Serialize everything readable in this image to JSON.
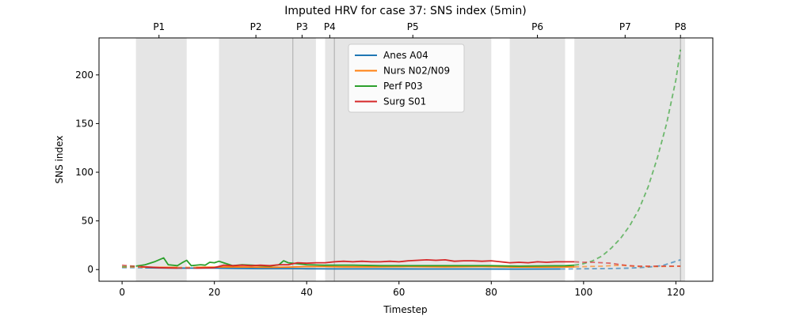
{
  "chart_data": {
    "type": "line",
    "title": "Imputed HRV for case 37: SNS index (5min)",
    "xlabel": "Timestep",
    "ylabel": "SNS index",
    "xlim": [
      -5,
      128
    ],
    "ylim": [
      -12,
      238
    ],
    "x_ticks": [
      0,
      20,
      40,
      60,
      80,
      100,
      120
    ],
    "y_ticks": [
      0,
      50,
      100,
      150,
      200
    ],
    "phase_ticks": [
      {
        "label": "P1",
        "x": 8
      },
      {
        "label": "P2",
        "x": 29
      },
      {
        "label": "P3",
        "x": 39
      },
      {
        "label": "P4",
        "x": 45
      },
      {
        "label": "P5",
        "x": 63
      },
      {
        "label": "P6",
        "x": 90
      },
      {
        "label": "P7",
        "x": 109
      },
      {
        "label": "P8",
        "x": 121
      }
    ],
    "shaded_spans": [
      [
        3,
        14
      ],
      [
        21,
        37
      ],
      [
        37,
        42
      ],
      [
        44,
        46
      ],
      [
        46,
        80
      ],
      [
        84,
        96
      ],
      [
        98,
        121
      ],
      [
        121,
        122
      ]
    ],
    "vertical_lines": [
      37,
      46,
      121
    ],
    "legend": {
      "position": "top-center",
      "entries": [
        "Anes A04",
        "Nurs N02/N09",
        "Perf P03",
        "Surg S01"
      ]
    },
    "series": [
      {
        "name": "Anes A04",
        "color": "#1f77b4",
        "values": [
          [
            0,
            2
          ],
          [
            5,
            1.8
          ],
          [
            10,
            1.5
          ],
          [
            14,
            1.5
          ],
          [
            20,
            1.5
          ],
          [
            25,
            1.2
          ],
          [
            30,
            1.0
          ],
          [
            36,
            1.0
          ],
          [
            40,
            0.8
          ],
          [
            46,
            0.7
          ],
          [
            55,
            0.7
          ],
          [
            65,
            0.6
          ],
          [
            75,
            0.6
          ],
          [
            85,
            0.5
          ],
          [
            95,
            0.6
          ],
          [
            105,
            1
          ],
          [
            110,
            1.5
          ],
          [
            114,
            2.5
          ],
          [
            117,
            4
          ],
          [
            119,
            7
          ],
          [
            121,
            10
          ]
        ]
      },
      {
        "name": "Nurs N02/N09",
        "color": "#ff7f0e",
        "values": [
          [
            0,
            2.5
          ],
          [
            4,
            2.5
          ],
          [
            8,
            2.3
          ],
          [
            12,
            2.2
          ],
          [
            16,
            2.3
          ],
          [
            20,
            2.5
          ],
          [
            24,
            2.8
          ],
          [
            28,
            2.5
          ],
          [
            32,
            2.3
          ],
          [
            36,
            2.5
          ],
          [
            40,
            3
          ],
          [
            44,
            3
          ],
          [
            48,
            2.8
          ],
          [
            55,
            2.8
          ],
          [
            62,
            3
          ],
          [
            70,
            2.8
          ],
          [
            78,
            3
          ],
          [
            85,
            2.5
          ],
          [
            92,
            2.5
          ],
          [
            98,
            2.8
          ],
          [
            104,
            3.5
          ],
          [
            108,
            4.5
          ],
          [
            112,
            3
          ],
          [
            116,
            3
          ],
          [
            121,
            3.5
          ]
        ]
      },
      {
        "name": "Perf P03",
        "color": "#2ca02c",
        "values": [
          [
            0,
            3
          ],
          [
            3,
            3.5
          ],
          [
            5,
            5
          ],
          [
            7,
            8
          ],
          [
            9,
            12
          ],
          [
            10,
            5
          ],
          [
            12,
            4
          ],
          [
            13,
            7
          ],
          [
            14,
            9.5
          ],
          [
            15,
            4
          ],
          [
            17,
            5
          ],
          [
            18,
            4.5
          ],
          [
            19,
            7.5
          ],
          [
            20,
            7
          ],
          [
            21,
            8.5
          ],
          [
            22,
            7
          ],
          [
            24,
            4
          ],
          [
            26,
            5
          ],
          [
            28,
            4.5
          ],
          [
            30,
            4
          ],
          [
            32,
            3.5
          ],
          [
            34,
            5
          ],
          [
            35,
            9
          ],
          [
            36,
            7
          ],
          [
            38,
            6
          ],
          [
            40,
            5
          ],
          [
            44,
            4.5
          ],
          [
            50,
            4.5
          ],
          [
            56,
            4
          ],
          [
            62,
            4
          ],
          [
            68,
            4
          ],
          [
            74,
            4
          ],
          [
            80,
            4
          ],
          [
            86,
            3.5
          ],
          [
            92,
            3.8
          ],
          [
            96,
            4
          ],
          [
            98,
            4.5
          ],
          [
            100,
            6
          ],
          [
            102,
            9
          ],
          [
            104,
            14
          ],
          [
            106,
            22
          ],
          [
            108,
            32
          ],
          [
            110,
            45
          ],
          [
            112,
            62
          ],
          [
            114,
            85
          ],
          [
            116,
            115
          ],
          [
            118,
            150
          ],
          [
            120,
            195
          ],
          [
            121,
            226
          ]
        ]
      },
      {
        "name": "Surg S01",
        "color": "#d62728",
        "values": [
          [
            0,
            4.5
          ],
          [
            4,
            3
          ],
          [
            8,
            2
          ],
          [
            12,
            1.5
          ],
          [
            16,
            1.5
          ],
          [
            20,
            2
          ],
          [
            22,
            4.5
          ],
          [
            24,
            4
          ],
          [
            26,
            4.5
          ],
          [
            28,
            4
          ],
          [
            30,
            4.5
          ],
          [
            32,
            4
          ],
          [
            34,
            5
          ],
          [
            36,
            5
          ],
          [
            38,
            7
          ],
          [
            40,
            6.5
          ],
          [
            42,
            7
          ],
          [
            44,
            7
          ],
          [
            46,
            8
          ],
          [
            48,
            8.5
          ],
          [
            50,
            8
          ],
          [
            52,
            8.5
          ],
          [
            54,
            8
          ],
          [
            56,
            8
          ],
          [
            58,
            8.5
          ],
          [
            60,
            8
          ],
          [
            62,
            9
          ],
          [
            64,
            9.5
          ],
          [
            66,
            10
          ],
          [
            68,
            9.5
          ],
          [
            70,
            10
          ],
          [
            72,
            8.5
          ],
          [
            74,
            9
          ],
          [
            76,
            9
          ],
          [
            78,
            8.5
          ],
          [
            80,
            9
          ],
          [
            82,
            8
          ],
          [
            84,
            7
          ],
          [
            86,
            7.5
          ],
          [
            88,
            7
          ],
          [
            90,
            8
          ],
          [
            92,
            7.5
          ],
          [
            94,
            8
          ],
          [
            96,
            8
          ],
          [
            98,
            8
          ],
          [
            100,
            7.5
          ],
          [
            102,
            7.5
          ],
          [
            104,
            7
          ],
          [
            106,
            6.5
          ],
          [
            108,
            5
          ],
          [
            110,
            4
          ],
          [
            112,
            3.5
          ],
          [
            114,
            3.5
          ],
          [
            116,
            3.5
          ],
          [
            118,
            3.5
          ],
          [
            121,
            3.5
          ]
        ]
      }
    ],
    "dashed_ranges": [
      [
        0,
        3
      ],
      [
        13.6,
        14.4
      ],
      [
        98,
        121
      ]
    ]
  }
}
